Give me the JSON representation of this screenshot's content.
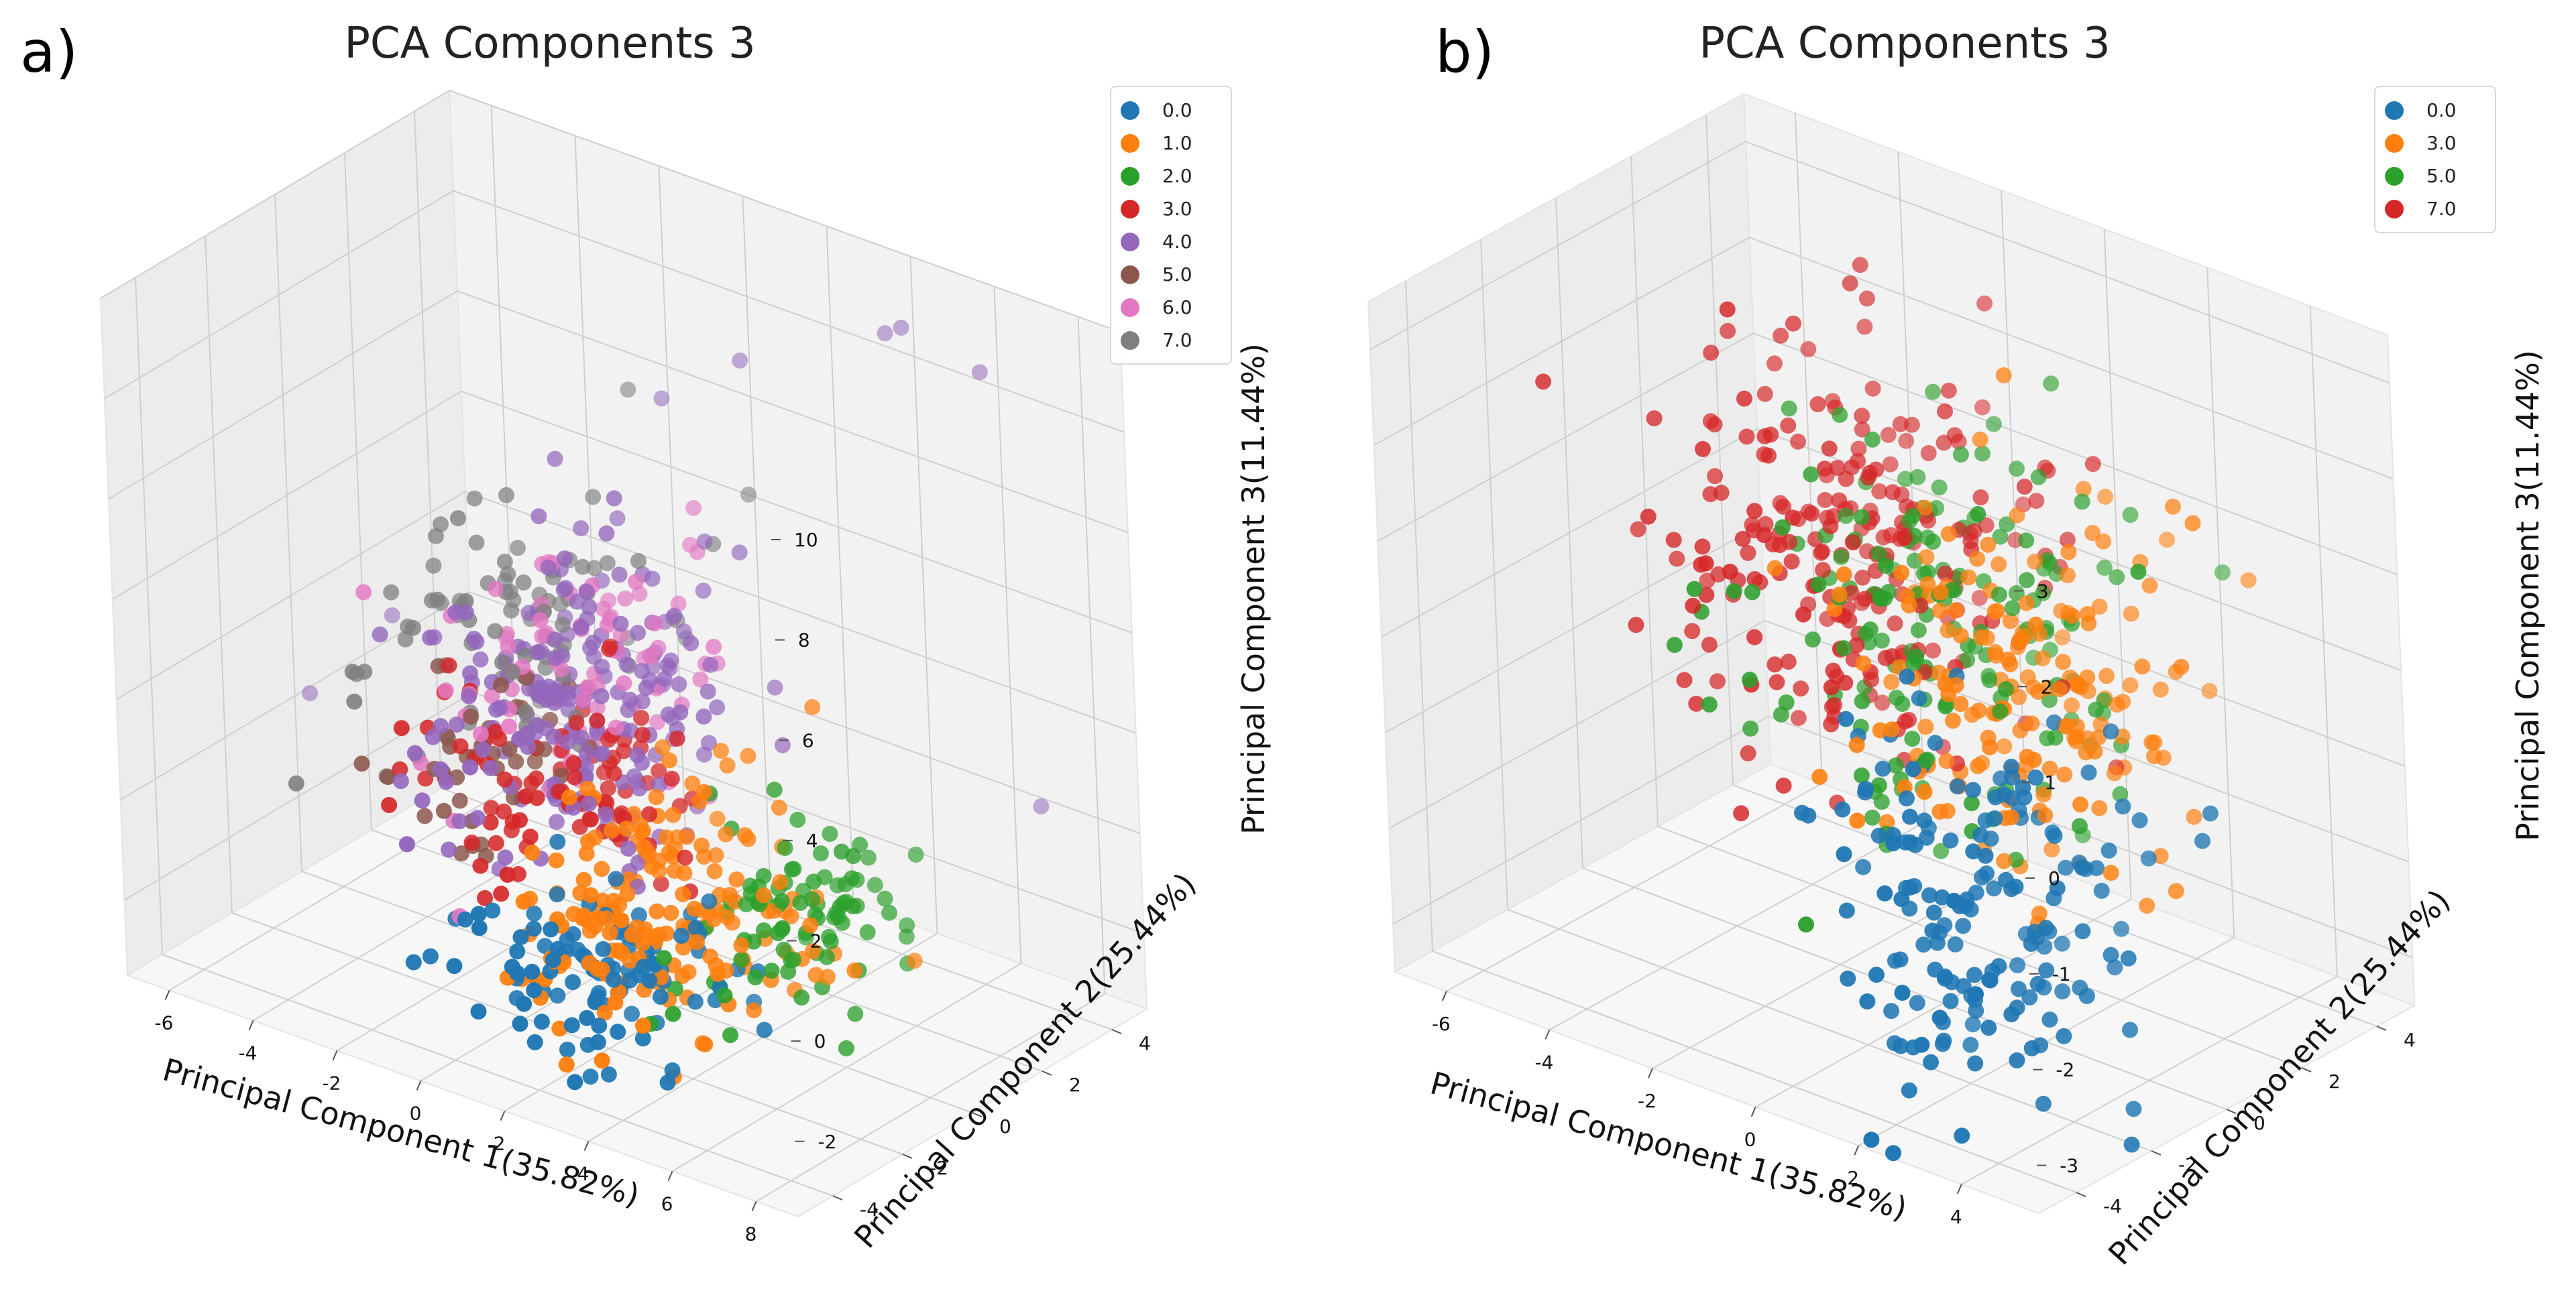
{
  "panels": [
    {
      "panel_label": "a)"
    },
    {
      "panel_label": "b)"
    }
  ],
  "chart_data": [
    {
      "type": "scatter",
      "projection": "3d",
      "title": "PCA Components 3",
      "xlabel": "Principal Component 1(35.82%)",
      "ylabel": "Principal Component 2(25.44%)",
      "zlabel": "Principal Component 3(11.44%)",
      "xlim": [
        -7,
        9
      ],
      "ylim": [
        -5,
        5
      ],
      "zlim": [
        -3.5,
        10
      ],
      "xticks": [
        -6,
        -4,
        -2,
        0,
        2,
        4,
        6,
        8
      ],
      "yticks": [
        -4,
        -2,
        0,
        2,
        4
      ],
      "zticks": [
        -2,
        0,
        2,
        4,
        6,
        8,
        10
      ],
      "legend_position": "top-right",
      "series": [
        {
          "name": "0.0",
          "color": "#1f77b4",
          "center": [
            2.5,
            -3.0,
            -1.5
          ],
          "spread": [
            1.3,
            0.9,
            0.8
          ],
          "count": 110
        },
        {
          "name": "1.0",
          "color": "#ff7f0e",
          "center": [
            3.2,
            -1.5,
            -0.6
          ],
          "spread": [
            1.3,
            1.4,
            1.0
          ],
          "count": 180
        },
        {
          "name": "2.0",
          "color": "#2ca02c",
          "center": [
            4.8,
            0.0,
            -0.8
          ],
          "spread": [
            1.0,
            1.3,
            0.9
          ],
          "count": 90
        },
        {
          "name": "3.0",
          "color": "#d62728",
          "center": [
            0.2,
            -1.0,
            0.8
          ],
          "spread": [
            1.4,
            1.2,
            0.9
          ],
          "count": 90
        },
        {
          "name": "4.0",
          "color": "#9467bd",
          "center": [
            0.0,
            0.0,
            2.0
          ],
          "spread": [
            1.5,
            1.5,
            1.4
          ],
          "count": 200
        },
        {
          "name": "5.0",
          "color": "#8c564b",
          "center": [
            -1.5,
            -1.0,
            0.8
          ],
          "spread": [
            1.0,
            1.0,
            0.8
          ],
          "count": 40
        },
        {
          "name": "6.0",
          "color": "#e377c2",
          "center": [
            -0.5,
            0.5,
            2.2
          ],
          "spread": [
            1.5,
            1.5,
            1.2
          ],
          "count": 80
        },
        {
          "name": "7.0",
          "color": "#7f7f7f",
          "center": [
            -2.5,
            1.0,
            2.5
          ],
          "spread": [
            1.3,
            1.5,
            1.2
          ],
          "count": 90
        }
      ],
      "outliers": [
        {
          "series": "4.0",
          "x": 5.0,
          "y": 3.5,
          "z": 9.5
        },
        {
          "series": "4.0",
          "x": 4.0,
          "y": 4.2,
          "z": 8.8
        },
        {
          "series": "4.0",
          "x": 1.5,
          "y": 3.0,
          "z": 8.0
        },
        {
          "series": "4.0",
          "x": 6.0,
          "y": 4.5,
          "z": 8.5
        },
        {
          "series": "4.0",
          "x": 7.5,
          "y": 4.0,
          "z": 0.5
        },
        {
          "series": "4.0",
          "x": -6.2,
          "y": -0.5,
          "z": 0.5
        },
        {
          "series": "4.0",
          "x": 0.0,
          "y": 2.5,
          "z": 7.0
        },
        {
          "series": "4.0",
          "x": -5.0,
          "y": 0.5,
          "z": 2.0
        }
      ]
    },
    {
      "type": "scatter",
      "projection": "3d",
      "title": "PCA Components 3",
      "xlabel": "Principal Component 1(35.82%)",
      "ylabel": "Principal Component 2(25.44%)",
      "zlabel": "Principal Component 3(11.44%)",
      "xlim": [
        -7,
        5.5
      ],
      "ylim": [
        -5,
        5
      ],
      "zlim": [
        -3.5,
        3.5
      ],
      "xticks": [
        -6,
        -4,
        -2,
        0,
        2,
        4
      ],
      "yticks": [
        -4,
        -2,
        0,
        2,
        4
      ],
      "zticks": [
        -3,
        -2,
        -1,
        0,
        1,
        2,
        3
      ],
      "legend_position": "top-right",
      "series": [
        {
          "name": "0.0",
          "color": "#1f77b4",
          "center": [
            2.5,
            -2.2,
            -1.5
          ],
          "spread": [
            1.2,
            1.2,
            1.1
          ],
          "count": 170
        },
        {
          "name": "3.0",
          "color": "#ff7f0e",
          "center": [
            1.5,
            0.5,
            0.0
          ],
          "spread": [
            1.3,
            1.4,
            1.0
          ],
          "count": 180
        },
        {
          "name": "5.0",
          "color": "#2ca02c",
          "center": [
            -0.5,
            0.8,
            0.2
          ],
          "spread": [
            1.4,
            1.6,
            1.0
          ],
          "count": 170
        },
        {
          "name": "7.0",
          "color": "#d62728",
          "center": [
            -2.5,
            1.2,
            0.5
          ],
          "spread": [
            1.6,
            1.6,
            1.0
          ],
          "count": 230
        }
      ],
      "outliers": []
    }
  ]
}
